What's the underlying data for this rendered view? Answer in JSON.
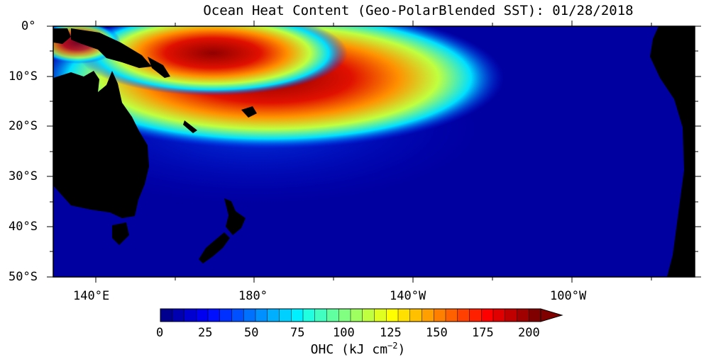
{
  "title": "Ocean Heat Content (Geo-PolarBlended SST): 01/28/2018",
  "map": {
    "lon_range": [
      "130°E",
      "100°W+"
    ],
    "lat_range": [
      "0°",
      "50°S"
    ],
    "land_color": "#000000",
    "ocean_low_color": "#00008f",
    "ocean_high_color": "#800000"
  },
  "lat_labels": [
    "0°",
    "10°S",
    "20°S",
    "30°S",
    "40°S",
    "50°S"
  ],
  "lon_labels": [
    "140°E",
    "180°",
    "140°W",
    "100°W"
  ],
  "colorbar": {
    "ticks": [
      "0",
      "25",
      "50",
      "75",
      "100",
      "125",
      "150",
      "175",
      "200"
    ],
    "min": 0,
    "max": 200,
    "label_text": "OHC (kJ cm",
    "label_exp": "−2",
    "label_close": ")",
    "colors": [
      "#00008f",
      "#0000b0",
      "#0000d0",
      "#0000f0",
      "#0010ff",
      "#0030ff",
      "#0050ff",
      "#0070ff",
      "#0090ff",
      "#00b0ff",
      "#00d0ff",
      "#00f0ff",
      "#20ffe0",
      "#40ffc0",
      "#60ffa0",
      "#80ff80",
      "#a0ff60",
      "#c0ff40",
      "#e0ff20",
      "#ffff00",
      "#ffe000",
      "#ffc000",
      "#ffa000",
      "#ff8000",
      "#ff6000",
      "#ff4000",
      "#ff2000",
      "#ff0000",
      "#e00000",
      "#c00000",
      "#a00000",
      "#800000"
    ]
  }
}
